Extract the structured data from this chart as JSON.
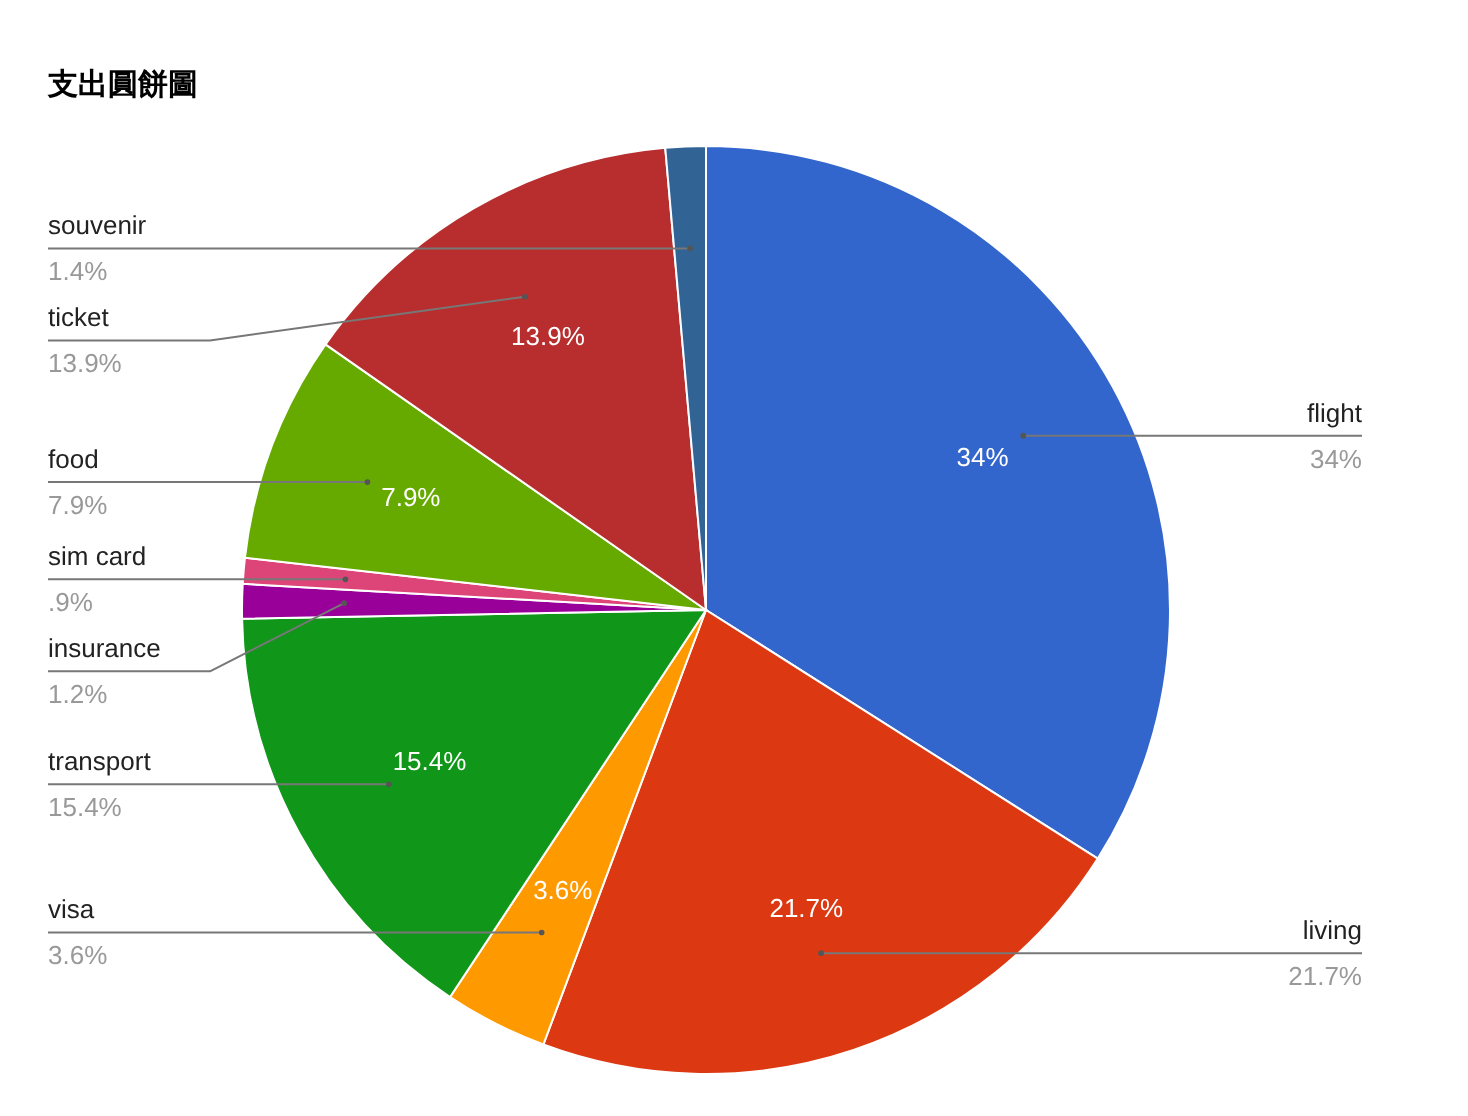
{
  "chart_data": {
    "type": "pie",
    "title": "支出圓餅圖",
    "categories": [
      "flight",
      "living",
      "visa",
      "transport",
      "insurance",
      "sim card",
      "food",
      "ticket",
      "souvenir"
    ],
    "values": [
      34,
      21.7,
      3.6,
      15.4,
      1.2,
      0.9,
      7.9,
      13.9,
      1.4
    ],
    "value_labels": [
      "34%",
      "21.7%",
      "3.6%",
      "15.4%",
      "1.2%",
      ".9%",
      "7.9%",
      "13.9%",
      "1.4%"
    ],
    "colors": [
      "#3366cc",
      "#dc3912",
      "#ff9900",
      "#109618",
      "#990099",
      "#dd4477",
      "#66aa00",
      "#b82e2e",
      "#316395"
    ]
  }
}
